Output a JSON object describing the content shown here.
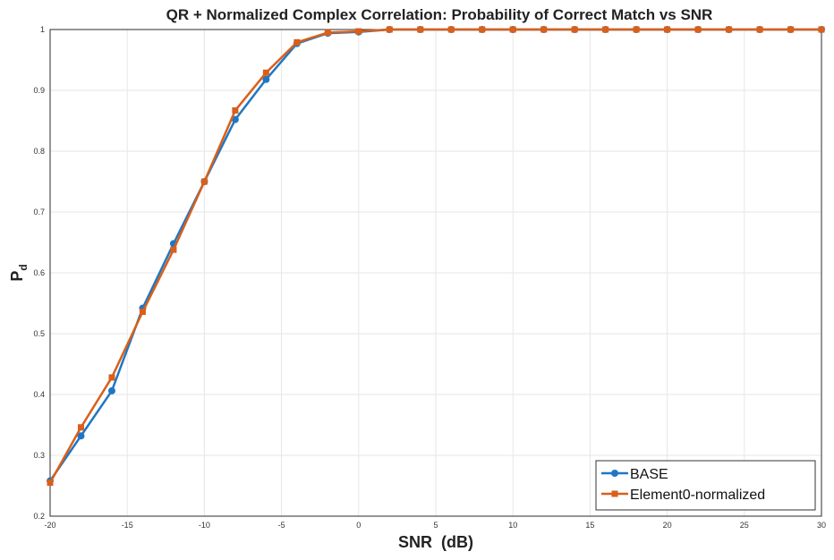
{
  "chart_data": {
    "type": "line",
    "title": "QR + Normalized Complex Correlation: Probability of Correct Match vs SNR",
    "xlabel": "SNR  (dB)",
    "ylabel_main": "P",
    "ylabel_sub": "d",
    "xlim": [
      -20,
      30
    ],
    "ylim": [
      0.2,
      1
    ],
    "xticks": [
      -20,
      -15,
      -10,
      -5,
      0,
      5,
      10,
      15,
      20,
      25,
      30
    ],
    "yticks": [
      0.2,
      0.3,
      0.4,
      0.5,
      0.6,
      0.7,
      0.8,
      0.9,
      1
    ],
    "grid": true,
    "legend_position": "bottom-right",
    "x": [
      -20,
      -18,
      -16,
      -14,
      -12,
      -10,
      -8,
      -6,
      -4,
      -2,
      0,
      2,
      4,
      6,
      8,
      10,
      12,
      14,
      16,
      18,
      20,
      22,
      24,
      26,
      28,
      30
    ],
    "series": [
      {
        "name": "BASE",
        "color": "#1f77c4",
        "marker": "circle",
        "values": [
          0.258,
          0.332,
          0.406,
          0.542,
          0.648,
          0.75,
          0.852,
          0.918,
          0.977,
          0.994,
          0.996,
          1,
          1,
          1,
          1,
          1,
          1,
          1,
          1,
          1,
          1,
          1,
          1,
          1,
          1,
          1
        ]
      },
      {
        "name": "Element0-normalized",
        "color": "#d95f1a",
        "marker": "square",
        "values": [
          0.255,
          0.346,
          0.428,
          0.536,
          0.638,
          0.75,
          0.867,
          0.929,
          0.979,
          0.995,
          0.997,
          1,
          1,
          1,
          1,
          1,
          1,
          1,
          1,
          1,
          1,
          1,
          1,
          1,
          1,
          1
        ]
      }
    ]
  }
}
